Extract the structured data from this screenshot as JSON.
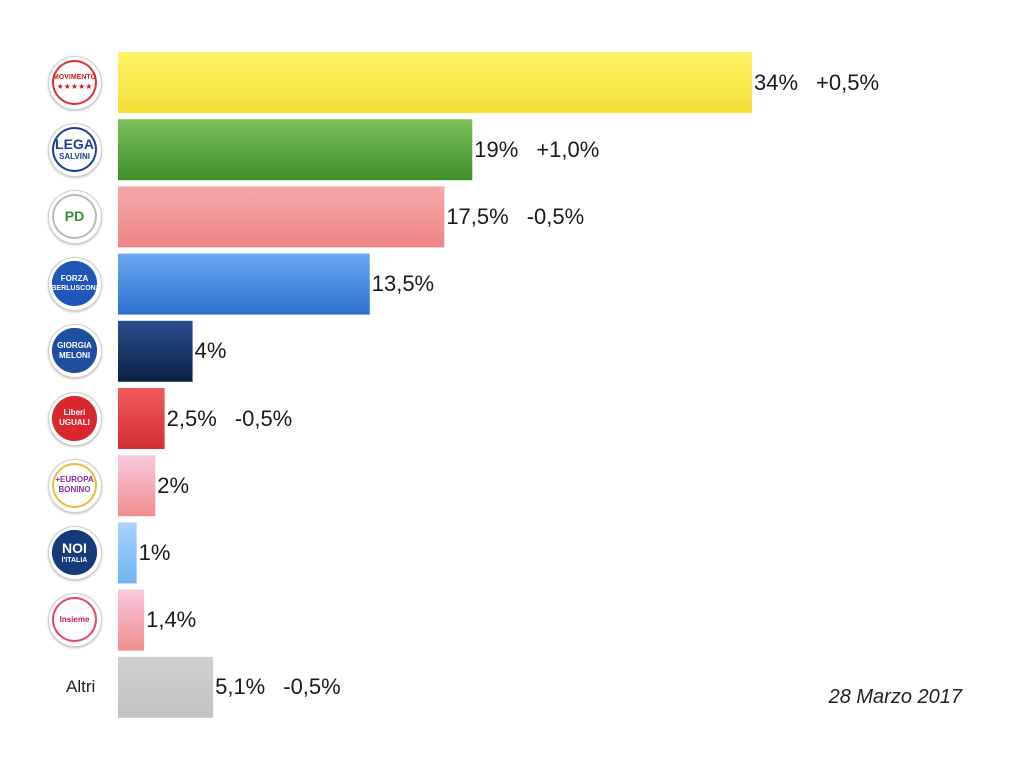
{
  "chart_data": {
    "type": "bar",
    "orientation": "horizontal",
    "date": "28 Marzo 2017",
    "categories": [
      "Movimento 5 Stelle",
      "Lega Salvini Premier",
      "Partito Democratico",
      "Forza Italia Berlusconi Presidente",
      "Fratelli d'Italia Giorgia Meloni",
      "Liberi e Uguali",
      "+Europa con Emma Bonino",
      "Noi con l'Italia",
      "Insieme / Civica Popolare",
      "Altri"
    ],
    "values": [
      34,
      19,
      17.5,
      13.5,
      4,
      2.5,
      2,
      1,
      1.4,
      5.1
    ],
    "value_labels": [
      "34%",
      "19%",
      "17,5%",
      "13,5%",
      "4%",
      "2,5%",
      "2%",
      "1%",
      "1,4%",
      "5,1%"
    ],
    "change_labels": [
      "+0,5%",
      "+1,0%",
      "-0,5%",
      "",
      "",
      "-0,5%",
      "",
      "",
      "",
      "-0,5%"
    ],
    "colors": [
      [
        "#fff36a",
        "#f2e035"
      ],
      [
        "#7cc05a",
        "#3e8f2c"
      ],
      [
        "#f5a9aa",
        "#ee8485"
      ],
      [
        "#6aa8f2",
        "#2c6fcf"
      ],
      [
        "#2a4f8f",
        "#0d1f45"
      ],
      [
        "#ef5a5d",
        "#d42f33"
      ],
      [
        "#f8c9dd",
        "#f08d8f"
      ],
      [
        "#a9d3fb",
        "#72b4f5"
      ],
      [
        "#f8c9dd",
        "#f08d8f"
      ],
      [
        "#d0d0d0",
        "#c2c2c2"
      ]
    ],
    "other_label": "Altri"
  },
  "logos": [
    {
      "icon": "movimento-5-stelle-logo",
      "lines": [
        "MOVIMENTO",
        "★★★★★"
      ],
      "bg": "#ffffff",
      "fg": "#c81f25",
      "ring": "#d33"
    },
    {
      "icon": "lega-salvini-logo",
      "lines": [
        "LEGA",
        "SALVINI"
      ],
      "bg": "#ffffff",
      "fg": "#1d3f94",
      "ring": "#1d3f94"
    },
    {
      "icon": "partito-democratico-logo",
      "lines": [
        "PD"
      ],
      "bg": "#ffffff",
      "fg": "#2f8f3a",
      "ring": "#bbb"
    },
    {
      "icon": "forza-italia-logo",
      "lines": [
        "FORZA",
        "BERLUSCONI"
      ],
      "bg": "#1f56b8",
      "fg": "#ffffff",
      "ring": "#1f56b8"
    },
    {
      "icon": "fratelli-ditalia-logo",
      "lines": [
        "GIORGIA",
        "MELONI"
      ],
      "bg": "#1d4ea0",
      "fg": "#ffffff",
      "ring": "#1d4ea0"
    },
    {
      "icon": "liberi-e-uguali-logo",
      "lines": [
        "Liberi",
        "UGUALI"
      ],
      "bg": "#d9282d",
      "fg": "#ffffff",
      "ring": "#d9282d"
    },
    {
      "icon": "piu-europa-logo",
      "lines": [
        "+EUROPA",
        "BONINO"
      ],
      "bg": "#ffffff",
      "fg": "#8a2f9a",
      "ring": "#e5c13a"
    },
    {
      "icon": "noi-con-litalia-logo",
      "lines": [
        "NOI",
        "l'ITALIA"
      ],
      "bg": "#173a7a",
      "fg": "#ffffff",
      "ring": "#173a7a"
    },
    {
      "icon": "civica-popolare-logo",
      "lines": [
        "Insieme"
      ],
      "bg": "#ffffff",
      "fg": "#c8195a",
      "ring": "#e46"
    }
  ]
}
